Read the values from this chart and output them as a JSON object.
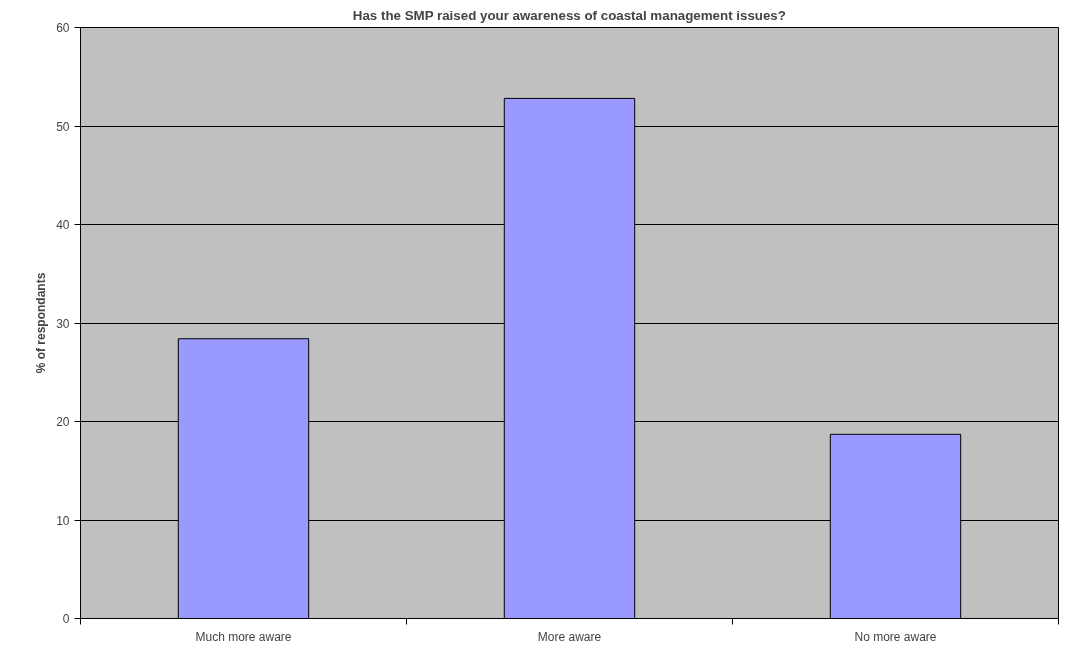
{
  "chart_data": {
    "type": "bar",
    "title": "Has the SMP raised your awareness of coastal management issues?",
    "ylabel": "% of respondants",
    "categories": [
      "Much more aware",
      "More aware",
      "No more aware"
    ],
    "values": [
      28.4,
      52.8,
      18.7
    ],
    "color": "#9999ff",
    "ylim": [
      0,
      60
    ],
    "yticks": [
      0,
      10,
      20,
      30,
      40,
      50,
      60
    ],
    "grid": "y"
  }
}
